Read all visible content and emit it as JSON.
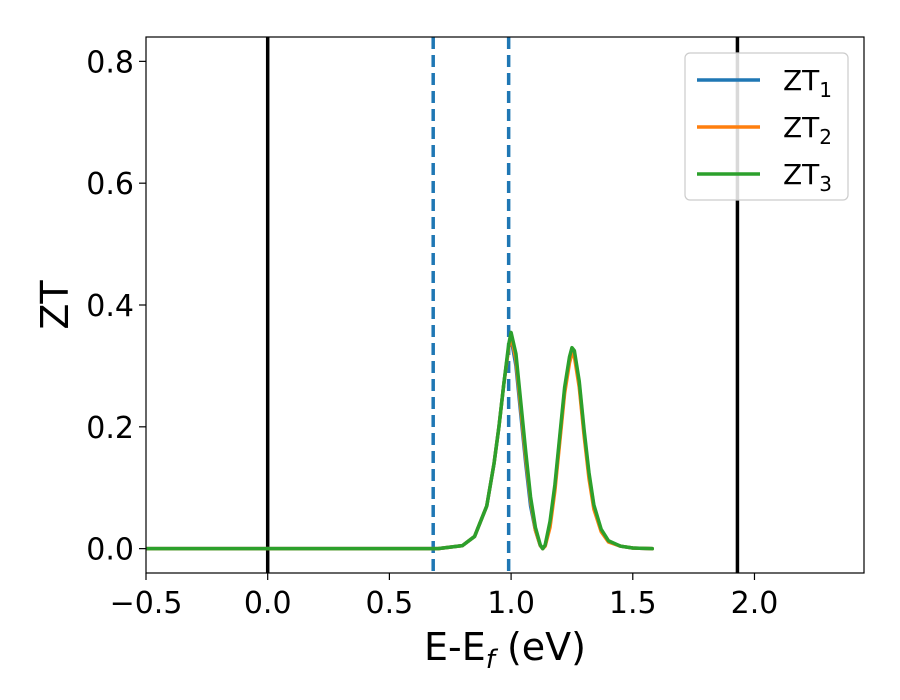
{
  "chart_data": {
    "type": "line",
    "xlabel": {
      "main": "E-E",
      "sub": "f",
      "suffix": " (eV)"
    },
    "ylabel": "ZT",
    "xlim": [
      -0.5,
      2.45
    ],
    "ylim": [
      -0.04,
      0.84
    ],
    "xticks": [
      {
        "v": -0.5,
        "label": "−0.5"
      },
      {
        "v": 0.0,
        "label": "0.0"
      },
      {
        "v": 0.5,
        "label": "0.5"
      },
      {
        "v": 1.0,
        "label": "1.0"
      },
      {
        "v": 1.5,
        "label": "1.5"
      },
      {
        "v": 2.0,
        "label": "2.0"
      }
    ],
    "yticks": [
      {
        "v": 0.0,
        "label": "0.0"
      },
      {
        "v": 0.2,
        "label": "0.2"
      },
      {
        "v": 0.4,
        "label": "0.4"
      },
      {
        "v": 0.6,
        "label": "0.6"
      },
      {
        "v": 0.8,
        "label": "0.8"
      }
    ],
    "vlines": [
      {
        "x": 0.0,
        "style": "solid",
        "color": "#000000"
      },
      {
        "x": 1.93,
        "style": "solid",
        "color": "#000000"
      },
      {
        "x": 0.68,
        "style": "dashed",
        "color": "#1f77b4"
      },
      {
        "x": 0.99,
        "style": "dashed",
        "color": "#1f77b4"
      }
    ],
    "legend_position": "top-right",
    "series": [
      {
        "name": {
          "main": "ZT",
          "sub": "1"
        },
        "color": "#1f77b4",
        "x": [
          -0.5,
          0.0,
          0.5,
          0.7,
          0.8,
          0.85,
          0.9,
          0.93,
          0.95,
          0.97,
          0.99,
          1.0,
          1.02,
          1.04,
          1.06,
          1.08,
          1.1,
          1.12,
          1.13,
          1.14,
          1.16,
          1.18,
          1.2,
          1.22,
          1.24,
          1.25,
          1.26,
          1.28,
          1.3,
          1.32,
          1.34,
          1.37,
          1.4,
          1.45,
          1.5,
          1.58
        ],
        "y": [
          0.0,
          0.0,
          0.0,
          0.0,
          0.005,
          0.02,
          0.07,
          0.14,
          0.2,
          0.27,
          0.33,
          0.345,
          0.3,
          0.22,
          0.14,
          0.07,
          0.03,
          0.005,
          0.0,
          0.005,
          0.04,
          0.1,
          0.18,
          0.26,
          0.31,
          0.325,
          0.32,
          0.27,
          0.19,
          0.12,
          0.07,
          0.03,
          0.012,
          0.004,
          0.001,
          0.0
        ]
      },
      {
        "name": {
          "main": "ZT",
          "sub": "2"
        },
        "color": "#ff7f0e",
        "x": [
          -0.5,
          0.0,
          0.5,
          0.7,
          0.8,
          0.85,
          0.9,
          0.93,
          0.95,
          0.97,
          0.99,
          1.0,
          1.02,
          1.04,
          1.06,
          1.08,
          1.1,
          1.12,
          1.13,
          1.14,
          1.16,
          1.18,
          1.2,
          1.22,
          1.24,
          1.25,
          1.26,
          1.28,
          1.3,
          1.32,
          1.34,
          1.37,
          1.4,
          1.45,
          1.5,
          1.58
        ],
        "y": [
          0.0,
          0.0,
          0.0,
          0.0,
          0.005,
          0.02,
          0.07,
          0.14,
          0.2,
          0.27,
          0.33,
          0.35,
          0.31,
          0.23,
          0.15,
          0.08,
          0.03,
          0.005,
          0.0,
          0.004,
          0.035,
          0.095,
          0.175,
          0.255,
          0.305,
          0.32,
          0.315,
          0.265,
          0.185,
          0.115,
          0.065,
          0.028,
          0.011,
          0.004,
          0.001,
          0.0
        ]
      },
      {
        "name": {
          "main": "ZT",
          "sub": "3"
        },
        "color": "#2ca02c",
        "x": [
          -0.5,
          0.0,
          0.5,
          0.7,
          0.8,
          0.85,
          0.9,
          0.93,
          0.95,
          0.97,
          0.99,
          1.0,
          1.02,
          1.04,
          1.06,
          1.08,
          1.1,
          1.12,
          1.13,
          1.14,
          1.16,
          1.18,
          1.2,
          1.22,
          1.24,
          1.25,
          1.26,
          1.28,
          1.3,
          1.32,
          1.34,
          1.37,
          1.4,
          1.45,
          1.5,
          1.58
        ],
        "y": [
          0.0,
          0.0,
          0.0,
          0.0,
          0.005,
          0.02,
          0.07,
          0.14,
          0.2,
          0.27,
          0.335,
          0.355,
          0.32,
          0.24,
          0.16,
          0.085,
          0.035,
          0.006,
          0.0,
          0.006,
          0.045,
          0.105,
          0.185,
          0.265,
          0.315,
          0.33,
          0.325,
          0.275,
          0.195,
          0.125,
          0.072,
          0.032,
          0.013,
          0.004,
          0.001,
          0.0
        ]
      }
    ]
  }
}
